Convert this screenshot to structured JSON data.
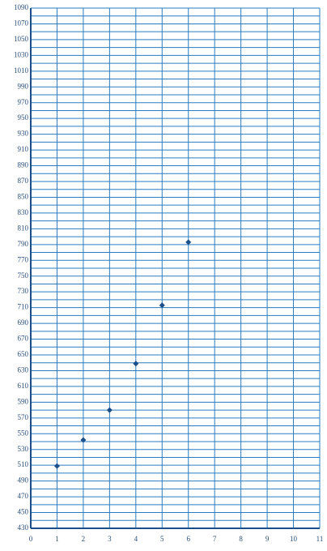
{
  "chart_data": {
    "type": "scatter",
    "x": [
      1,
      2,
      3,
      4,
      5,
      6
    ],
    "values": [
      509,
      542,
      580,
      639,
      713,
      793
    ],
    "color": "#1b4f8c",
    "grid_color": "#2a7cc0",
    "xlim": [
      0,
      11
    ],
    "xticks": [
      0,
      1,
      2,
      3,
      4,
      5,
      6,
      7,
      8,
      9,
      10,
      11
    ],
    "ylim": [
      430,
      1090
    ],
    "yticks": [
      430,
      450,
      470,
      490,
      510,
      530,
      550,
      570,
      590,
      610,
      630,
      650,
      670,
      690,
      710,
      730,
      750,
      770,
      790,
      810,
      830,
      850,
      870,
      890,
      910,
      930,
      950,
      970,
      990,
      1010,
      1030,
      1050,
      1070,
      1090
    ],
    "yminor": [
      440,
      460,
      480,
      500,
      520,
      540,
      560,
      580,
      600,
      620,
      640,
      660,
      680,
      700,
      720,
      740,
      760,
      780,
      800,
      820,
      840,
      860,
      880,
      900,
      920,
      940,
      960,
      980,
      1000,
      1020,
      1040,
      1060,
      1080
    ],
    "grid": true
  }
}
